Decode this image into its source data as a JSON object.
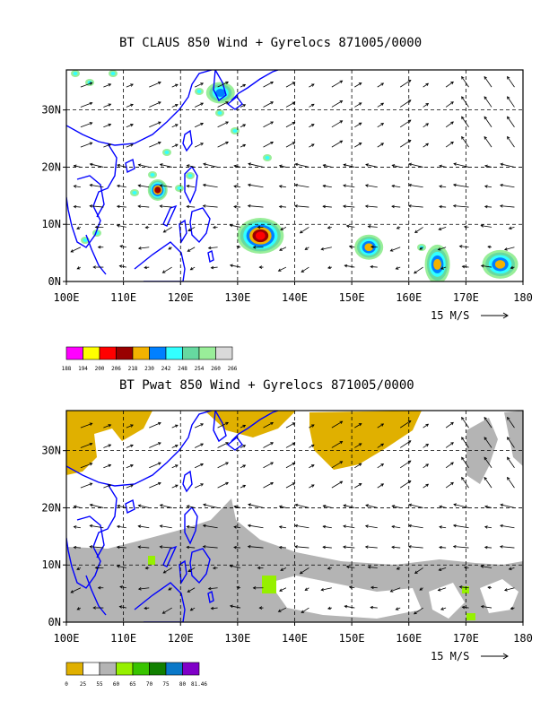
{
  "chart_data": [
    {
      "type": "map",
      "title": "BT CLAUS 850 Wind + Gyrelocs 871005/0000",
      "x_tick_labels": [
        "100E",
        "110E",
        "120E",
        "130E",
        "140E",
        "150E",
        "160E",
        "170E",
        "180"
      ],
      "y_tick_labels": [
        "0N",
        "10N",
        "20N",
        "30N"
      ],
      "xlim": [
        100,
        180
      ],
      "ylim": [
        0,
        37
      ],
      "grid": true,
      "vector_scale_label": "15 M/S",
      "colorbar": {
        "labels": [
          "188",
          "194",
          "200",
          "206",
          "218",
          "230",
          "242",
          "248",
          "254",
          "260",
          "266"
        ],
        "colors": [
          "#ff00ff",
          "#ffff00",
          "#ff0000",
          "#990000",
          "#f2b200",
          "#0080ff",
          "#33ffff",
          "#66d9a0",
          "#99ee99",
          "#d9d9d9"
        ]
      },
      "cloud_systems": [
        {
          "lon": 134,
          "lat": 8
        },
        {
          "lon": 116,
          "lat": 16
        },
        {
          "lon": 153,
          "lat": 6
        },
        {
          "lon": 165,
          "lat": 3
        },
        {
          "lon": 176,
          "lat": 3
        },
        {
          "lon": 127,
          "lat": 33
        }
      ]
    },
    {
      "type": "map",
      "title": "BT Pwat 850 Wind + Gyrelocs 871005/0000",
      "x_tick_labels": [
        "100E",
        "110E",
        "120E",
        "130E",
        "140E",
        "150E",
        "160E",
        "170E",
        "180"
      ],
      "y_tick_labels": [
        "0N",
        "10N",
        "20N",
        "30N"
      ],
      "xlim": [
        100,
        180
      ],
      "ylim": [
        0,
        37
      ],
      "grid": true,
      "vector_scale_label": "15 M/S",
      "colorbar": {
        "labels": [
          "0",
          "25",
          "55",
          "60",
          "65",
          "70",
          "75",
          "80",
          "81.46"
        ],
        "colors": [
          "#e0b000",
          "#ffffff",
          "#b4b4b4",
          "#96f000",
          "#38c400",
          "#118000",
          "#0a78c8",
          "#8000c8"
        ]
      }
    }
  ]
}
